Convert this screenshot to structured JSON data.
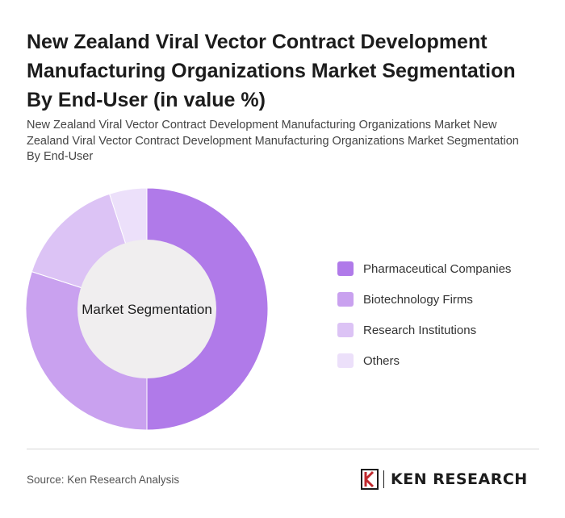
{
  "header": {
    "title": "New Zealand Viral Vector Contract Development Manufacturing Organizations Market Segmentation By End-User (in value %)",
    "subtitle": "New Zealand Viral Vector Contract Development Manufacturing Organizations Market New Zealand Viral Vector Contract Development Manufacturing Organizations Market Segmentation By End-User"
  },
  "chart_data": {
    "type": "pie",
    "donut": true,
    "center_label": "Market Segmentation",
    "categories": [
      "Pharmaceutical Companies",
      "Biotechnology Firms",
      "Research Institutions",
      "Others"
    ],
    "values": [
      50,
      30,
      15,
      5
    ],
    "colors": [
      "#b07ae9",
      "#c9a1ef",
      "#dcc3f5",
      "#ece0fa"
    ],
    "legend_position": "right"
  },
  "footer": {
    "source": "Source: Ken Research Analysis",
    "brand": "KEN RESEARCH"
  }
}
